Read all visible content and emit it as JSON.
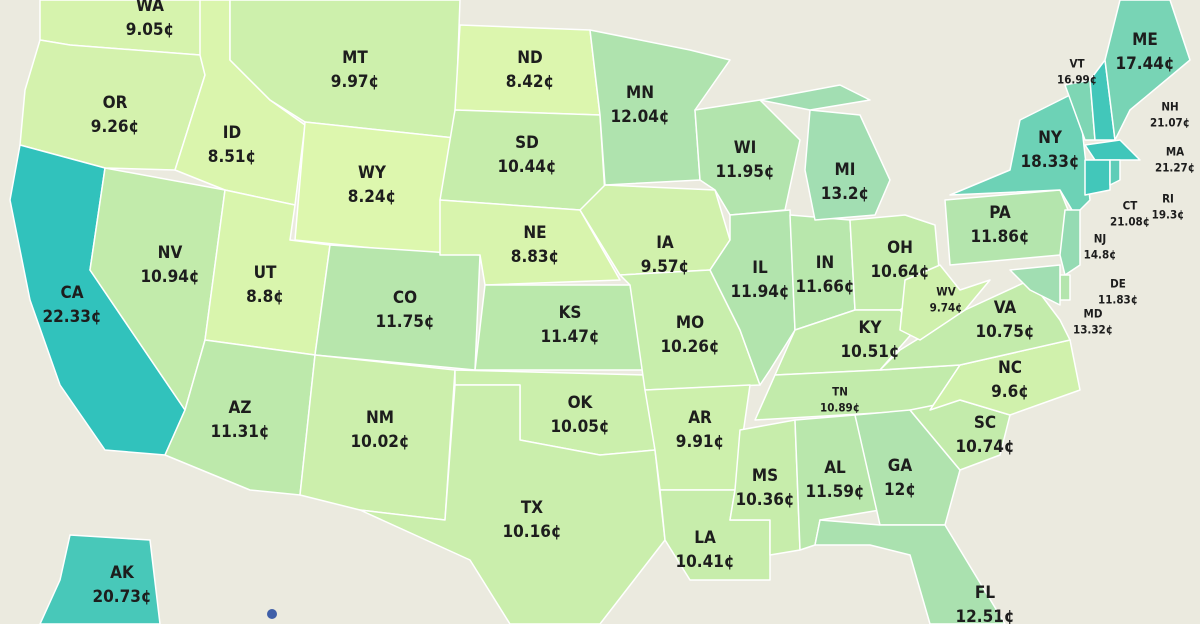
{
  "states": [
    {
      "abbr": "WA",
      "value": 9.05,
      "value_label": "9.05¢",
      "color": "#d6f3ad"
    },
    {
      "abbr": "OR",
      "value": 9.26,
      "value_label": "9.26¢",
      "color": "#d4f2ad"
    },
    {
      "abbr": "CA",
      "value": 22.33,
      "value_label": "22.33¢",
      "color": "#31c2bc"
    },
    {
      "abbr": "NV",
      "value": 10.94,
      "value_label": "10.94¢",
      "color": "#c2ebab"
    },
    {
      "abbr": "ID",
      "value": 8.51,
      "value_label": "8.51¢",
      "color": "#daf5ad"
    },
    {
      "abbr": "MT",
      "value": 9.97,
      "value_label": "9.97¢",
      "color": "#cdf0ac"
    },
    {
      "abbr": "WY",
      "value": 8.24,
      "value_label": "8.24¢",
      "color": "#ddf7ae"
    },
    {
      "abbr": "UT",
      "value": 8.8,
      "value_label": "8.8¢",
      "color": "#d9f5ad"
    },
    {
      "abbr": "AZ",
      "value": 11.31,
      "value_label": "11.31¢",
      "color": "#bde9ab"
    },
    {
      "abbr": "CO",
      "value": 11.75,
      "value_label": "11.75¢",
      "color": "#b7e6ac"
    },
    {
      "abbr": "NM",
      "value": 10.02,
      "value_label": "10.02¢",
      "color": "#ccefac"
    },
    {
      "abbr": "ND",
      "value": 8.42,
      "value_label": "8.42¢",
      "color": "#dcf6ae"
    },
    {
      "abbr": "SD",
      "value": 10.44,
      "value_label": "10.44¢",
      "color": "#c6edab"
    },
    {
      "abbr": "NE",
      "value": 8.83,
      "value_label": "8.83¢",
      "color": "#d8f4ad"
    },
    {
      "abbr": "KS",
      "value": 11.47,
      "value_label": "11.47¢",
      "color": "#bae8ab"
    },
    {
      "abbr": "OK",
      "value": 10.05,
      "value_label": "10.05¢",
      "color": "#cbefac"
    },
    {
      "abbr": "TX",
      "value": 10.16,
      "value_label": "10.16¢",
      "color": "#caeeac"
    },
    {
      "abbr": "MN",
      "value": 12.04,
      "value_label": "12.04¢",
      "color": "#afe3ae"
    },
    {
      "abbr": "IA",
      "value": 9.57,
      "value_label": "9.57¢",
      "color": "#d1f1ac"
    },
    {
      "abbr": "MO",
      "value": 10.26,
      "value_label": "10.26¢",
      "color": "#c8eeac"
    },
    {
      "abbr": "AR",
      "value": 9.91,
      "value_label": "9.91¢",
      "color": "#cdf0ac"
    },
    {
      "abbr": "LA",
      "value": 10.41,
      "value_label": "10.41¢",
      "color": "#c7edab"
    },
    {
      "abbr": "WI",
      "value": 11.95,
      "value_label": "11.95¢",
      "color": "#b2e4ad"
    },
    {
      "abbr": "IL",
      "value": 11.94,
      "value_label": "11.94¢",
      "color": "#b2e4ad"
    },
    {
      "abbr": "IN",
      "value": 11.66,
      "value_label": "11.66¢",
      "color": "#b8e7ac"
    },
    {
      "abbr": "MI",
      "value": 13.2,
      "value_label": "13.2¢",
      "color": "#a2deb2"
    },
    {
      "abbr": "OH",
      "value": 10.64,
      "value_label": "10.64¢",
      "color": "#c4ecab"
    },
    {
      "abbr": "KY",
      "value": 10.51,
      "value_label": "10.51¢",
      "color": "#c5ecab"
    },
    {
      "abbr": "TN",
      "value": 10.89,
      "value_label": "10.89¢",
      "color": "#c2ebab"
    },
    {
      "abbr": "MS",
      "value": 10.36,
      "value_label": "10.36¢",
      "color": "#c7edab"
    },
    {
      "abbr": "AL",
      "value": 11.59,
      "value_label": "11.59¢",
      "color": "#b9e7ac"
    },
    {
      "abbr": "GA",
      "value": 12,
      "value_label": "12¢",
      "color": "#b0e3ae"
    },
    {
      "abbr": "FL",
      "value": 12.51,
      "value_label": "12.51¢",
      "color": "#aae1af"
    },
    {
      "abbr": "SC",
      "value": 10.74,
      "value_label": "10.74¢",
      "color": "#c3ebab"
    },
    {
      "abbr": "NC",
      "value": 9.6,
      "value_label": "9.6¢",
      "color": "#d0f1ac"
    },
    {
      "abbr": "VA",
      "value": 10.75,
      "value_label": "10.75¢",
      "color": "#c3ebab"
    },
    {
      "abbr": "WV",
      "value": 9.74,
      "value_label": "9.74¢",
      "color": "#cff0ac"
    },
    {
      "abbr": "PA",
      "value": 11.86,
      "value_label": "11.86¢",
      "color": "#b4e5ad"
    },
    {
      "abbr": "NY",
      "value": 18.33,
      "value_label": "18.33¢",
      "color": "#6dd2b6"
    },
    {
      "abbr": "VT",
      "value": 16.99,
      "value_label": "16.99¢",
      "color": "#7ed6b4"
    },
    {
      "abbr": "NH",
      "value": 21.07,
      "value_label": "21.07¢",
      "color": "#42c7ba"
    },
    {
      "abbr": "ME",
      "value": 17.44,
      "value_label": "17.44¢",
      "color": "#78d4b5"
    },
    {
      "abbr": "MA",
      "value": 21.27,
      "value_label": "21.27¢",
      "color": "#40c6ba"
    },
    {
      "abbr": "CT",
      "value": 21.08,
      "value_label": "21.08¢",
      "color": "#42c7ba"
    },
    {
      "abbr": "RI",
      "value": 19.3,
      "value_label": "19.3¢",
      "color": "#5ecdb8"
    },
    {
      "abbr": "NJ",
      "value": 14.8,
      "value_label": "14.8¢",
      "color": "#95dbb3"
    },
    {
      "abbr": "DE",
      "value": 11.83,
      "value_label": "11.83¢",
      "color": "#b4e5ad"
    },
    {
      "abbr": "MD",
      "value": 13.32,
      "value_label": "13.32¢",
      "color": "#a1deb2"
    },
    {
      "abbr": "AK",
      "value": 20.73,
      "value_label": "20.73¢",
      "color": "#48c8b9"
    }
  ]
}
